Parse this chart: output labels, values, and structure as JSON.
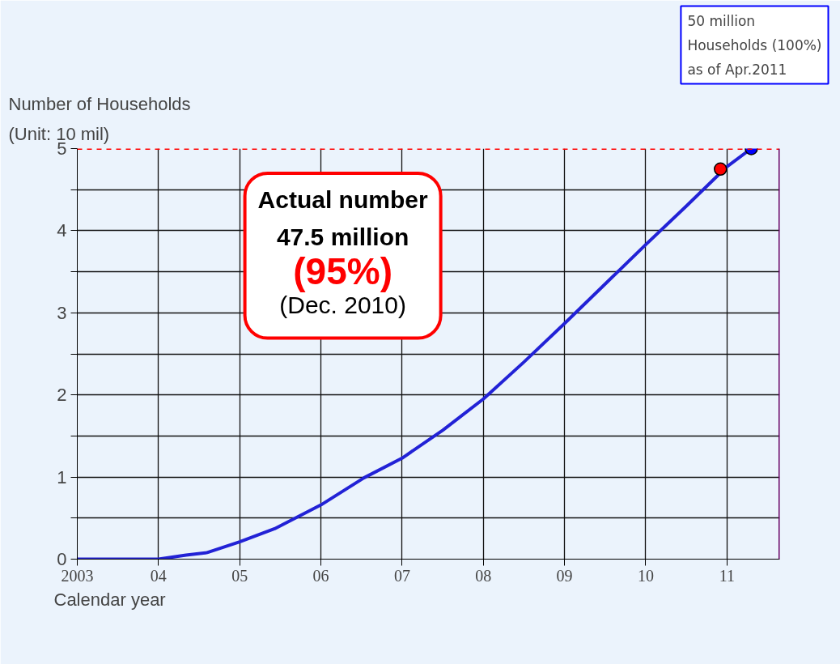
{
  "chart_data": {
    "type": "line",
    "xlabel": "Calendar  year",
    "ylabel": "Number of Households\n(Unit: 10 mil)",
    "series": [
      {
        "color": "#2222d6",
        "x": [
          2003,
          2004,
          2004.34,
          2004.6,
          2005,
          2005.43,
          2006,
          2006.53,
          2007,
          2007.5,
          2008,
          2008.5,
          2009,
          2009.5,
          2010,
          2010.5,
          2011,
          2011.3
        ],
        "values": [
          0,
          0,
          0.05,
          0.08,
          0.21,
          0.37,
          0.66,
          0.99,
          1.23,
          1.57,
          1.95,
          2.4,
          2.87,
          3.35,
          3.83,
          4.3,
          4.78,
          5
        ]
      },
      {
        "type": "scatter",
        "colors": [
          "#ff0000",
          "#0000ff"
        ],
        "x": [
          2010.92,
          2011.3
        ],
        "values": [
          4.75,
          5
        ]
      }
    ],
    "xlim": [
      2003,
      2011.65
    ],
    "ylim": [
      0,
      5
    ],
    "xticks": [
      2003,
      {
        "value": 2004,
        "label": "04"
      },
      {
        "value": 2005,
        "label": "05"
      },
      {
        "value": 2006,
        "label": "06"
      },
      {
        "value": 2007,
        "label": "07"
      },
      {
        "value": 2008,
        "label": "08"
      },
      {
        "value": 2009,
        "label": "09"
      },
      {
        "value": 2010,
        "label": "10"
      },
      {
        "value": 2011,
        "label": "11"
      }
    ],
    "yticks": [
      0,
      {
        "value": 0.5,
        "label": null
      },
      1,
      {
        "value": 1.5,
        "label": null
      },
      2,
      {
        "value": 2.5,
        "label": null
      },
      3,
      {
        "value": 3.5,
        "label": null
      },
      4,
      {
        "value": 4.5,
        "label": null
      },
      5
    ],
    "grid": true,
    "ref_lines": [
      {
        "axis": "y",
        "value": 5,
        "color": "#ff0000",
        "line_style": "dashed"
      },
      {
        "axis": "x",
        "value": 2011.65,
        "color": "#660066",
        "line_style": "solid"
      }
    ],
    "annotations": [
      "Actual number\n47.5 million\n(95%)\n(Dec. 2010)",
      "50 million\nHouseholds (100%)\nas of Apr.2011"
    ]
  }
}
